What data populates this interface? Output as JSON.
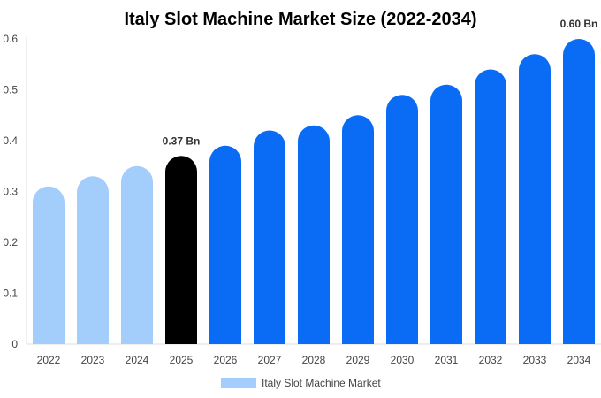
{
  "chart_data": {
    "type": "bar",
    "title": "Italy Slot Machine Market Size (2022-2034)",
    "categories": [
      "2022",
      "2023",
      "2024",
      "2025",
      "2026",
      "2027",
      "2028",
      "2029",
      "2030",
      "2031",
      "2032",
      "2033",
      "2034"
    ],
    "series": [
      {
        "name": "Italy Slot Machine Market",
        "values": [
          0.31,
          0.33,
          0.35,
          0.37,
          0.39,
          0.42,
          0.43,
          0.45,
          0.49,
          0.51,
          0.54,
          0.57,
          0.6
        ]
      }
    ],
    "ylim": [
      0,
      0.6
    ],
    "yticks": [
      "0",
      "0.1",
      "0.2",
      "0.3",
      "0.4",
      "0.5",
      "0.6"
    ],
    "data_labels": [
      {
        "index": 3,
        "text": "0.37 Bn"
      },
      {
        "index": 12,
        "text": "0.60 Bn"
      }
    ],
    "bar_colors": {
      "historic": "#a3cdfb",
      "current": "#000000",
      "forecast": "#0a6cf5"
    },
    "current_index": 3,
    "legend_position": "bottom",
    "grid": false
  }
}
